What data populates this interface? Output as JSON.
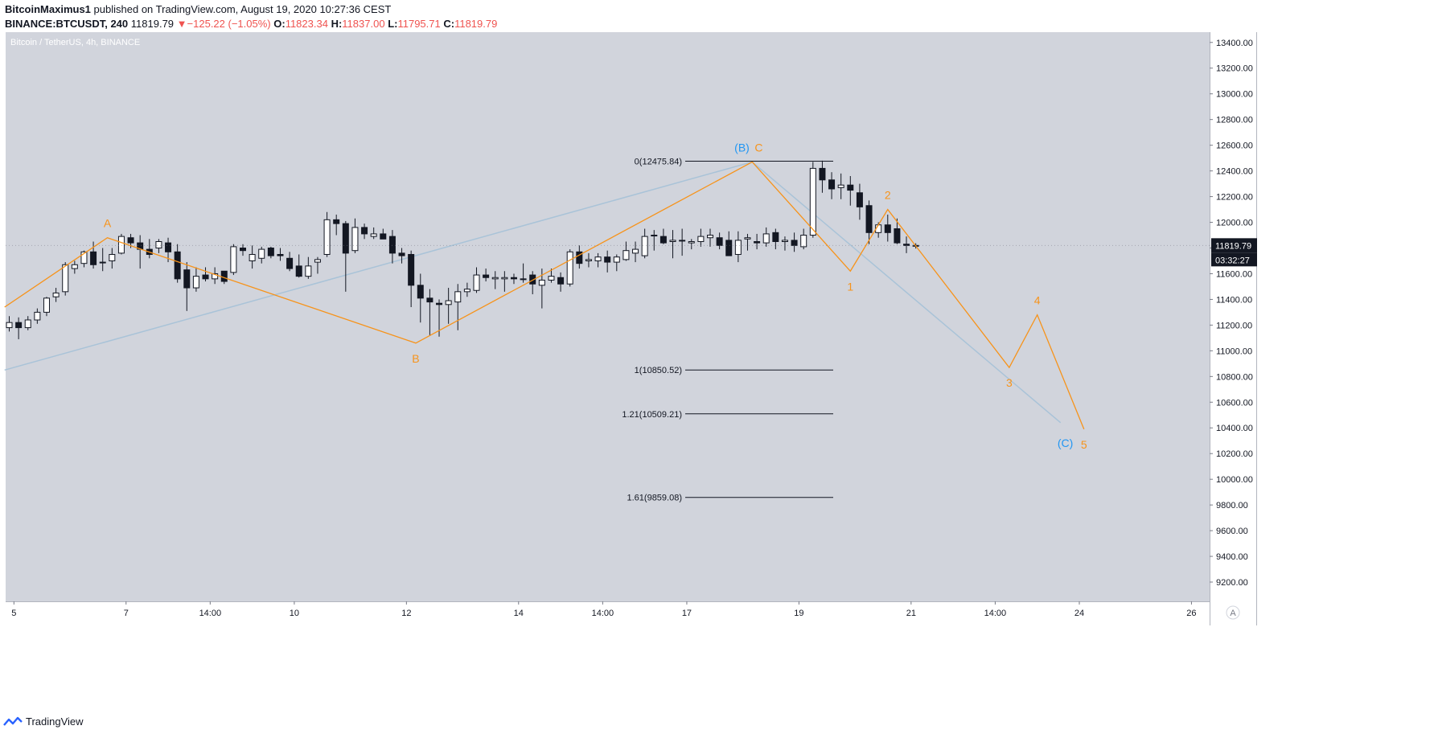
{
  "header": {
    "author": "BitcoinMaximus1",
    "published_text": "published on TradingView.com, August 19, 2020 10:27:36 CEST",
    "symbol": "BINANCE:BTCUSDT, 240",
    "last": "11819.79",
    "change_arrow": "▼",
    "change": "−125.22 (−1.05%)",
    "o_label": "O:",
    "o_value": "11823.34",
    "h_label": "H:",
    "h_value": "11837.00",
    "l_label": "L:",
    "l_value": "11795.71",
    "c_label": "C:",
    "c_value": "11819.79"
  },
  "footer": {
    "brand": "TradingView",
    "logo_icon": "tradingview-logo-icon"
  },
  "colors": {
    "plot_bg": "#d1d4dc",
    "wave_orange": "#f7931a",
    "wave_blue": "#2196f3",
    "trend_line": "#a9c3d8",
    "candle_up": "#ffffff",
    "candle_down": "#131722",
    "fib_line": "#131722",
    "price_tag": "#131722"
  },
  "chart_data": {
    "type": "candlestick",
    "title": "Bitcoin / TetherUS, 4h, BINANCE",
    "ylim": [
      9050,
      13480
    ],
    "y_ticks": [
      "13400.00",
      "13200.00",
      "13000.00",
      "12800.00",
      "12600.00",
      "12400.00",
      "12200.00",
      "12000.00",
      "11800.00",
      "11600.00",
      "11400.00",
      "11200.00",
      "11000.00",
      "10800.00",
      "10600.00",
      "10400.00",
      "10200.00",
      "10000.00",
      "9800.00",
      "9600.00",
      "9400.00",
      "9200.00"
    ],
    "x_ticks": [
      {
        "label": "5",
        "t": 0.5
      },
      {
        "label": "7",
        "t": 12.5
      },
      {
        "label": "14:00",
        "t": 21.5
      },
      {
        "label": "10",
        "t": 30.5
      },
      {
        "label": "12",
        "t": 42.5
      },
      {
        "label": "14",
        "t": 54.5
      },
      {
        "label": "14:00",
        "t": 63.5
      },
      {
        "label": "17",
        "t": 72.5
      },
      {
        "label": "19",
        "t": 84.5
      },
      {
        "label": "21",
        "t": 96.5
      },
      {
        "label": "14:00",
        "t": 105.5
      },
      {
        "label": "24",
        "t": 114.5
      },
      {
        "label": "26",
        "t": 126.5
      }
    ],
    "candles": [
      [
        11180,
        11270,
        11150,
        11220
      ],
      [
        11220,
        11260,
        11090,
        11180
      ],
      [
        11180,
        11270,
        11160,
        11240
      ],
      [
        11240,
        11330,
        11210,
        11300
      ],
      [
        11300,
        11420,
        11270,
        11410
      ],
      [
        11420,
        11490,
        11380,
        11450
      ],
      [
        11460,
        11690,
        11430,
        11670
      ],
      [
        11640,
        11700,
        11600,
        11670
      ],
      [
        11680,
        11780,
        11650,
        11770
      ],
      [
        11770,
        11850,
        11640,
        11670
      ],
      [
        11690,
        11800,
        11620,
        11690
      ],
      [
        11700,
        11800,
        11640,
        11750
      ],
      [
        11760,
        11910,
        11750,
        11890
      ],
      [
        11880,
        11910,
        11800,
        11840
      ],
      [
        11840,
        11900,
        11640,
        11790
      ],
      [
        11790,
        11870,
        11720,
        11750
      ],
      [
        11800,
        11870,
        11760,
        11850
      ],
      [
        11840,
        11880,
        11690,
        11770
      ],
      [
        11770,
        11830,
        11530,
        11560
      ],
      [
        11630,
        11690,
        11310,
        11490
      ],
      [
        11490,
        11650,
        11460,
        11580
      ],
      [
        11590,
        11650,
        11540,
        11560
      ],
      [
        11560,
        11650,
        11520,
        11600
      ],
      [
        11620,
        11620,
        11520,
        11540
      ],
      [
        11610,
        11830,
        11590,
        11810
      ],
      [
        11800,
        11830,
        11740,
        11780
      ],
      [
        11700,
        11820,
        11640,
        11750
      ],
      [
        11720,
        11810,
        11680,
        11790
      ],
      [
        11800,
        11810,
        11720,
        11740
      ],
      [
        11750,
        11800,
        11700,
        11740
      ],
      [
        11720,
        11770,
        11620,
        11640
      ],
      [
        11660,
        11750,
        11570,
        11580
      ],
      [
        11580,
        11730,
        11560,
        11660
      ],
      [
        11690,
        11730,
        11600,
        11710
      ],
      [
        11750,
        12080,
        11730,
        12020
      ],
      [
        12020,
        12060,
        11900,
        11990
      ],
      [
        11990,
        12010,
        11460,
        11760
      ],
      [
        11780,
        12030,
        11760,
        11960
      ],
      [
        11960,
        11990,
        11870,
        11910
      ],
      [
        11890,
        11960,
        11870,
        11910
      ],
      [
        11910,
        11950,
        11870,
        11870
      ],
      [
        11890,
        11940,
        11680,
        11760
      ],
      [
        11760,
        11800,
        11680,
        11740
      ],
      [
        11750,
        11780,
        11340,
        11510
      ],
      [
        11510,
        11600,
        11220,
        11410
      ],
      [
        11410,
        11480,
        11120,
        11380
      ],
      [
        11370,
        11400,
        11110,
        11360
      ],
      [
        11360,
        11490,
        11210,
        11390
      ],
      [
        11380,
        11520,
        11160,
        11460
      ],
      [
        11460,
        11530,
        11420,
        11480
      ],
      [
        11470,
        11650,
        11450,
        11590
      ],
      [
        11590,
        11640,
        11540,
        11570
      ],
      [
        11560,
        11620,
        11480,
        11570
      ],
      [
        11560,
        11620,
        11460,
        11570
      ],
      [
        11570,
        11600,
        11520,
        11560
      ],
      [
        11560,
        11680,
        11530,
        11560
      ],
      [
        11590,
        11620,
        11440,
        11520
      ],
      [
        11510,
        11640,
        11330,
        11550
      ],
      [
        11550,
        11640,
        11530,
        11580
      ],
      [
        11570,
        11610,
        11460,
        11520
      ],
      [
        11520,
        11790,
        11500,
        11770
      ],
      [
        11770,
        11820,
        11640,
        11680
      ],
      [
        11700,
        11760,
        11650,
        11710
      ],
      [
        11700,
        11760,
        11650,
        11730
      ],
      [
        11730,
        11780,
        11610,
        11690
      ],
      [
        11690,
        11750,
        11620,
        11730
      ],
      [
        11710,
        11850,
        11700,
        11780
      ],
      [
        11760,
        11850,
        11690,
        11790
      ],
      [
        11740,
        11950,
        11720,
        11890
      ],
      [
        11900,
        11940,
        11780,
        11900
      ],
      [
        11890,
        11950,
        11830,
        11840
      ],
      [
        11850,
        11940,
        11720,
        11860
      ],
      [
        11860,
        11950,
        11740,
        11860
      ],
      [
        11840,
        11870,
        11790,
        11850
      ],
      [
        11850,
        11950,
        11810,
        11890
      ],
      [
        11880,
        11950,
        11810,
        11900
      ],
      [
        11880,
        11920,
        11790,
        11820
      ],
      [
        11860,
        11930,
        11740,
        11740
      ],
      [
        11750,
        11930,
        11690,
        11860
      ],
      [
        11870,
        11910,
        11780,
        11880
      ],
      [
        11850,
        11910,
        11790,
        11840
      ],
      [
        11840,
        11960,
        11810,
        11910
      ],
      [
        11920,
        11950,
        11790,
        11850
      ],
      [
        11850,
        11890,
        11780,
        11860
      ],
      [
        11860,
        11920,
        11770,
        11820
      ],
      [
        11810,
        11950,
        11790,
        11900
      ],
      [
        11900,
        12470,
        11880,
        12420
      ],
      [
        12420,
        12480,
        12230,
        12330
      ],
      [
        12330,
        12390,
        12180,
        12260
      ],
      [
        12270,
        12380,
        12180,
        12290
      ],
      [
        12290,
        12360,
        12130,
        12250
      ],
      [
        12230,
        12300,
        12020,
        12120
      ],
      [
        12130,
        12170,
        11830,
        11920
      ],
      [
        11920,
        12000,
        11880,
        11980
      ],
      [
        11980,
        12060,
        11850,
        11920
      ],
      [
        11950,
        12030,
        11830,
        11840
      ],
      [
        11830,
        11890,
        11760,
        11820
      ],
      [
        11820,
        11837,
        11796,
        11820
      ]
    ],
    "fib_levels": [
      {
        "label": "0(12475.84)",
        "value": 12475.84
      },
      {
        "label": "1(10850.52)",
        "value": 10850.52
      },
      {
        "label": "1.21(10509.21)",
        "value": 10509.21
      },
      {
        "label": "1.61(9859.08)",
        "value": 9859.08
      }
    ],
    "wave_path": [
      {
        "t": -0.5,
        "p": 11340
      },
      {
        "t": 10.5,
        "p": 11880
      },
      {
        "t": 43.5,
        "p": 11060
      },
      {
        "t": 79.5,
        "p": 12470
      },
      {
        "t": 90,
        "p": 11620
      },
      {
        "t": 94,
        "p": 12100
      },
      {
        "t": 107,
        "p": 10870
      },
      {
        "t": 110,
        "p": 11280
      },
      {
        "t": 115,
        "p": 10390
      }
    ],
    "trend_line": [
      {
        "t": -0.5,
        "p": 10850
      },
      {
        "t": 79.5,
        "p": 12470
      },
      {
        "t": 112.5,
        "p": 10440
      }
    ],
    "wave_labels": [
      {
        "text": "A",
        "t": 10.5,
        "p": 11880,
        "color": "orange",
        "pos": "above"
      },
      {
        "text": "B",
        "t": 43.5,
        "p": 11060,
        "color": "orange",
        "pos": "below"
      },
      {
        "text": "C",
        "t": 80.2,
        "p": 12470,
        "color": "orange",
        "pos": "above"
      },
      {
        "text": "(B)",
        "t": 78.4,
        "p": 12470,
        "color": "blue",
        "pos": "above"
      },
      {
        "text": "1",
        "t": 90,
        "p": 11620,
        "color": "orange",
        "pos": "below"
      },
      {
        "text": "2",
        "t": 94,
        "p": 12100,
        "color": "orange",
        "pos": "above"
      },
      {
        "text": "3",
        "t": 107,
        "p": 10870,
        "color": "orange",
        "pos": "below"
      },
      {
        "text": "4",
        "t": 110,
        "p": 11280,
        "color": "orange",
        "pos": "above"
      },
      {
        "text": "5",
        "t": 115,
        "p": 10390,
        "color": "orange",
        "pos": "below"
      },
      {
        "text": "(C)",
        "t": 113,
        "p": 10400,
        "color": "blue",
        "pos": "below"
      }
    ],
    "last_price_tag": "11819.79",
    "countdown_tag": "03:32:27",
    "scale_mode_button": "A"
  }
}
